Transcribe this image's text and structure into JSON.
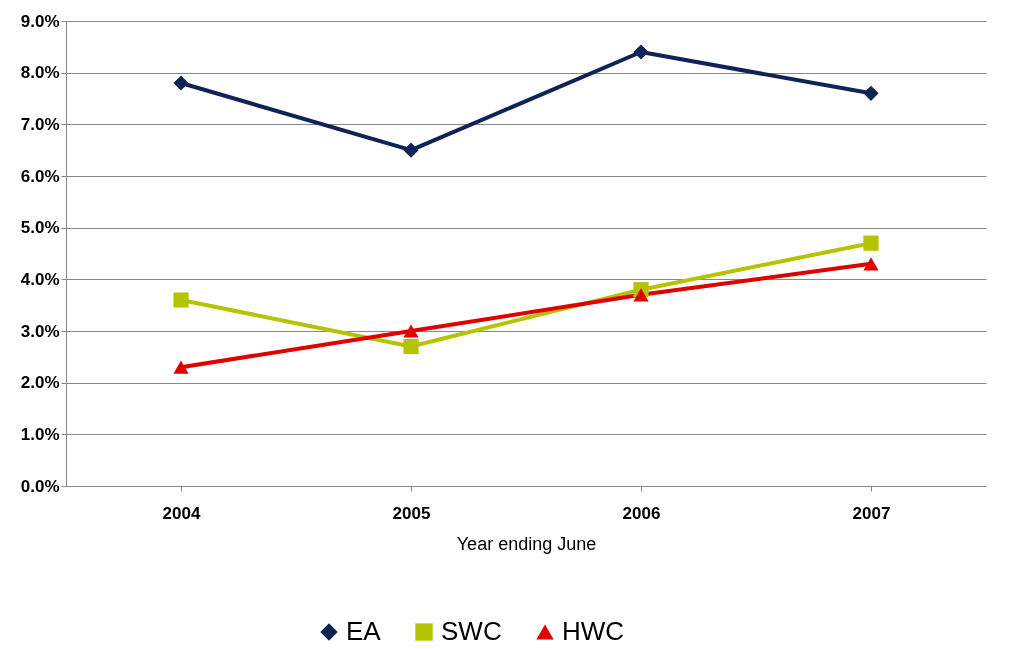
{
  "chart_data": {
    "type": "line",
    "xlabel": "Year ending June",
    "categories": [
      "2004",
      "2005",
      "2006",
      "2007"
    ],
    "series": [
      {
        "name": "EA",
        "color": "#0f2356",
        "marker": "diamond",
        "values": [
          7.8,
          6.5,
          8.4,
          7.6
        ]
      },
      {
        "name": "SWC",
        "color": "#b5c400",
        "marker": "square",
        "values": [
          3.6,
          2.7,
          3.8,
          4.7
        ]
      },
      {
        "name": "HWC",
        "color": "#e00000",
        "marker": "triangle",
        "values": [
          2.3,
          3.0,
          3.7,
          4.3
        ]
      }
    ],
    "ylim": [
      0,
      9
    ],
    "yticks": [
      {
        "value": 0,
        "label": "0.0%"
      },
      {
        "value": 1,
        "label": "1.0%"
      },
      {
        "value": 2,
        "label": "2.0%"
      },
      {
        "value": 3,
        "label": "3.0%"
      },
      {
        "value": 4,
        "label": "4.0%"
      },
      {
        "value": 5,
        "label": "5.0%"
      },
      {
        "value": 6,
        "label": "6.0%"
      },
      {
        "value": 7,
        "label": "7.0%"
      },
      {
        "value": 8,
        "label": "8.0%"
      },
      {
        "value": 9,
        "label": "9.0%"
      }
    ],
    "grid": "y",
    "legend": "bottom",
    "line_style": "solid"
  }
}
